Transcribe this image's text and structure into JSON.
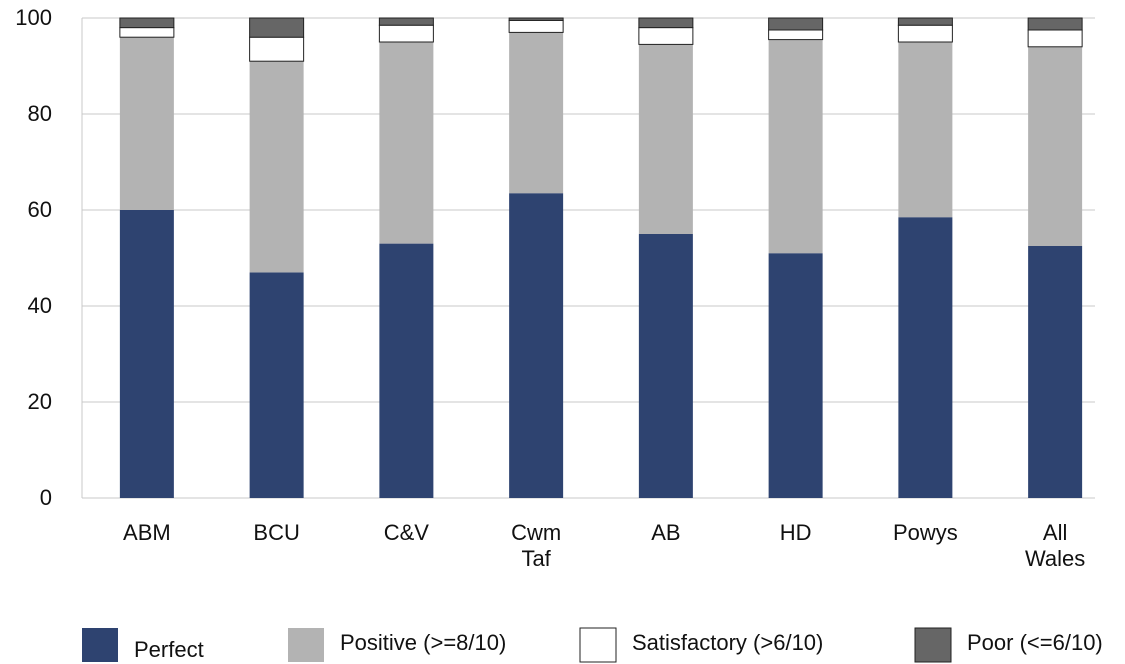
{
  "chart_data": {
    "type": "stacked_bar",
    "categories": [
      "ABM",
      "BCU",
      "C&V",
      "Cwm Taf",
      "AB",
      "HD",
      "Powys",
      "All Wales"
    ],
    "series": [
      {
        "name": "Perfect",
        "color": "#2e4370",
        "values": [
          60,
          47,
          53,
          63.5,
          55,
          51,
          58.5,
          52.5
        ]
      },
      {
        "name": "Positive (>=8/10)",
        "color": "#b3b3b3",
        "values": [
          36,
          44,
          42,
          33.5,
          39.5,
          44.5,
          36.5,
          41.5
        ]
      },
      {
        "name": "Satisfactory (>6/10)",
        "color": "#ffffff",
        "values": [
          2,
          5,
          3.5,
          2.5,
          3.5,
          2,
          3.5,
          3.5
        ]
      },
      {
        "name": "Poor (<=6/10)",
        "color": "#666666",
        "values": [
          2,
          4,
          1.5,
          0.5,
          2,
          2.5,
          1.5,
          2.5
        ]
      }
    ],
    "ylim": [
      0,
      100
    ],
    "yticks": [
      0,
      20,
      40,
      60,
      80,
      100
    ],
    "grid": true,
    "legend": "bottom"
  }
}
